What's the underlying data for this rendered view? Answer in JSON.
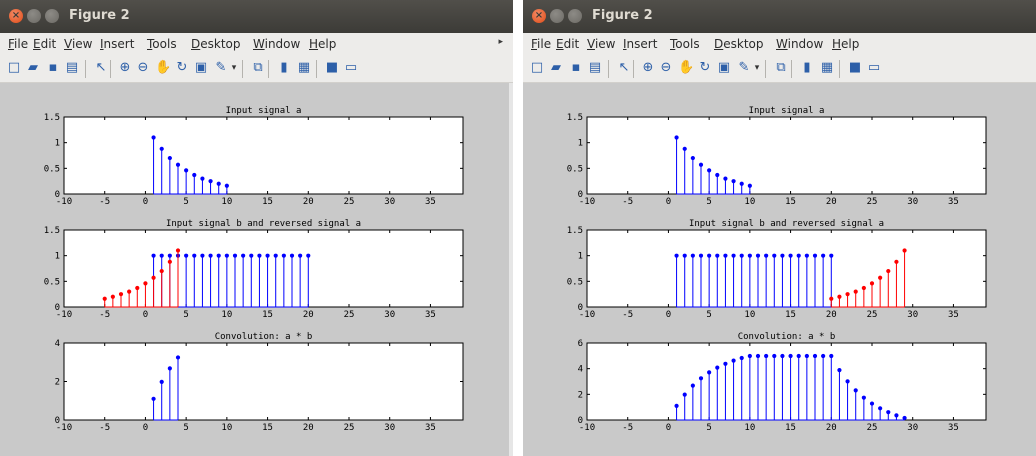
{
  "windows": [
    {
      "title": "Figure 2",
      "menu": [
        "File",
        "Edit",
        "View",
        "Insert",
        "Tools",
        "Desktop",
        "Window",
        "Help"
      ],
      "menu_underline": [
        "F",
        "E",
        "V",
        "I",
        "T",
        "D",
        "W",
        "H"
      ],
      "toolbar_icons": [
        "new-figure-icon",
        "open-file-icon",
        "save-icon",
        "print-icon",
        "pointer-icon",
        "zoom-in-icon",
        "zoom-out-icon",
        "pan-icon",
        "rotate-3d-icon",
        "data-cursor-icon",
        "brush-icon",
        "brush-dropdown-icon",
        "link-plot-icon",
        "colorbar-icon",
        "legend-icon",
        "hide-plot-tools-icon",
        "show-plot-tools-icon"
      ],
      "chart_data": [
        {
          "type": "stem",
          "title": "Input signal a",
          "xlim": [
            -10,
            39
          ],
          "ylim": [
            0,
            1.5
          ],
          "xticks": [
            "-10",
            "-5",
            "0",
            "5",
            "10",
            "15",
            "20",
            "25",
            "30",
            "35"
          ],
          "yticks": [
            "0",
            "0.5",
            "1",
            "1.5"
          ],
          "series": [
            {
              "color": "#0000ff",
              "x": [
                1,
                2,
                3,
                4,
                5,
                6,
                7,
                8,
                9,
                10
              ],
              "y": [
                1.1,
                0.88,
                0.7,
                0.57,
                0.46,
                0.37,
                0.3,
                0.25,
                0.2,
                0.16
              ]
            }
          ]
        },
        {
          "type": "stem",
          "title": "Input signal b and reversed signal a",
          "xlim": [
            -10,
            39
          ],
          "ylim": [
            0,
            1.5
          ],
          "xticks": [
            "-10",
            "-5",
            "0",
            "5",
            "10",
            "15",
            "20",
            "25",
            "30",
            "35"
          ],
          "yticks": [
            "0",
            "0.5",
            "1",
            "1.5"
          ],
          "series": [
            {
              "color": "#0000ff",
              "x": [
                1,
                2,
                3,
                4,
                5,
                6,
                7,
                8,
                9,
                10,
                11,
                12,
                13,
                14,
                15,
                16,
                17,
                18,
                19,
                20
              ],
              "y": [
                1,
                1,
                1,
                1,
                1,
                1,
                1,
                1,
                1,
                1,
                1,
                1,
                1,
                1,
                1,
                1,
                1,
                1,
                1,
                1
              ]
            },
            {
              "color": "#ff0000",
              "x": [
                -5,
                -4,
                -3,
                -2,
                -1,
                0,
                1,
                2,
                3,
                4
              ],
              "y": [
                0.16,
                0.2,
                0.25,
                0.3,
                0.37,
                0.46,
                0.57,
                0.7,
                0.88,
                1.1
              ]
            }
          ]
        },
        {
          "type": "stem",
          "title": "Convolution: a * b",
          "xlim": [
            -10,
            39
          ],
          "ylim": [
            0,
            4
          ],
          "xticks": [
            "-10",
            "-5",
            "0",
            "5",
            "10",
            "15",
            "20",
            "25",
            "30",
            "35"
          ],
          "yticks": [
            "0",
            "2",
            "4"
          ],
          "series": [
            {
              "color": "#0000ff",
              "x": [
                1,
                2,
                3,
                4
              ],
              "y": [
                1.1,
                1.98,
                2.68,
                3.25
              ]
            }
          ]
        }
      ]
    },
    {
      "title": "Figure 2",
      "menu": [
        "File",
        "Edit",
        "View",
        "Insert",
        "Tools",
        "Desktop",
        "Window",
        "Help"
      ],
      "menu_underline": [
        "F",
        "E",
        "V",
        "I",
        "T",
        "D",
        "W",
        "H"
      ],
      "toolbar_icons": [
        "new-figure-icon",
        "open-file-icon",
        "save-icon",
        "print-icon",
        "pointer-icon",
        "zoom-in-icon",
        "zoom-out-icon",
        "pan-icon",
        "rotate-3d-icon",
        "data-cursor-icon",
        "brush-icon",
        "brush-dropdown-icon",
        "link-plot-icon",
        "colorbar-icon",
        "legend-icon",
        "hide-plot-tools-icon",
        "show-plot-tools-icon"
      ],
      "chart_data": [
        {
          "type": "stem",
          "title": "Input signal a",
          "xlim": [
            -10,
            39
          ],
          "ylim": [
            0,
            1.5
          ],
          "xticks": [
            "-10",
            "-5",
            "0",
            "5",
            "10",
            "15",
            "20",
            "25",
            "30",
            "35"
          ],
          "yticks": [
            "0",
            "0.5",
            "1",
            "1.5"
          ],
          "series": [
            {
              "color": "#0000ff",
              "x": [
                1,
                2,
                3,
                4,
                5,
                6,
                7,
                8,
                9,
                10
              ],
              "y": [
                1.1,
                0.88,
                0.7,
                0.57,
                0.46,
                0.37,
                0.3,
                0.25,
                0.2,
                0.16
              ]
            }
          ]
        },
        {
          "type": "stem",
          "title": "Input signal b and reversed signal a",
          "xlim": [
            -10,
            39
          ],
          "ylim": [
            0,
            1.5
          ],
          "xticks": [
            "-10",
            "-5",
            "0",
            "5",
            "10",
            "15",
            "20",
            "25",
            "30",
            "35"
          ],
          "yticks": [
            "0",
            "0.5",
            "1",
            "1.5"
          ],
          "series": [
            {
              "color": "#0000ff",
              "x": [
                1,
                2,
                3,
                4,
                5,
                6,
                7,
                8,
                9,
                10,
                11,
                12,
                13,
                14,
                15,
                16,
                17,
                18,
                19,
                20
              ],
              "y": [
                1,
                1,
                1,
                1,
                1,
                1,
                1,
                1,
                1,
                1,
                1,
                1,
                1,
                1,
                1,
                1,
                1,
                1,
                1,
                1
              ]
            },
            {
              "color": "#ff0000",
              "x": [
                20,
                21,
                22,
                23,
                24,
                25,
                26,
                27,
                28,
                29
              ],
              "y": [
                0.16,
                0.2,
                0.25,
                0.3,
                0.37,
                0.46,
                0.57,
                0.7,
                0.88,
                1.1
              ]
            }
          ]
        },
        {
          "type": "stem",
          "title": "Convolution: a * b",
          "xlim": [
            -10,
            39
          ],
          "ylim": [
            0,
            6
          ],
          "xticks": [
            "-10",
            "-5",
            "0",
            "5",
            "10",
            "15",
            "20",
            "25",
            "30",
            "35"
          ],
          "yticks": [
            "0",
            "2",
            "4",
            "6"
          ],
          "series": [
            {
              "color": "#0000ff",
              "x": [
                1,
                2,
                3,
                4,
                5,
                6,
                7,
                8,
                9,
                10,
                11,
                12,
                13,
                14,
                15,
                16,
                17,
                18,
                19,
                20,
                21,
                22,
                23,
                24,
                25,
                26,
                27,
                28,
                29
              ],
              "y": [
                1.1,
                1.98,
                2.68,
                3.25,
                3.71,
                4.08,
                4.38,
                4.63,
                4.83,
                4.99,
                4.99,
                4.99,
                4.99,
                4.99,
                4.99,
                4.99,
                4.99,
                4.99,
                4.99,
                4.99,
                3.89,
                3.01,
                2.31,
                1.74,
                1.28,
                0.91,
                0.61,
                0.36,
                0.16
              ]
            }
          ]
        }
      ]
    }
  ]
}
